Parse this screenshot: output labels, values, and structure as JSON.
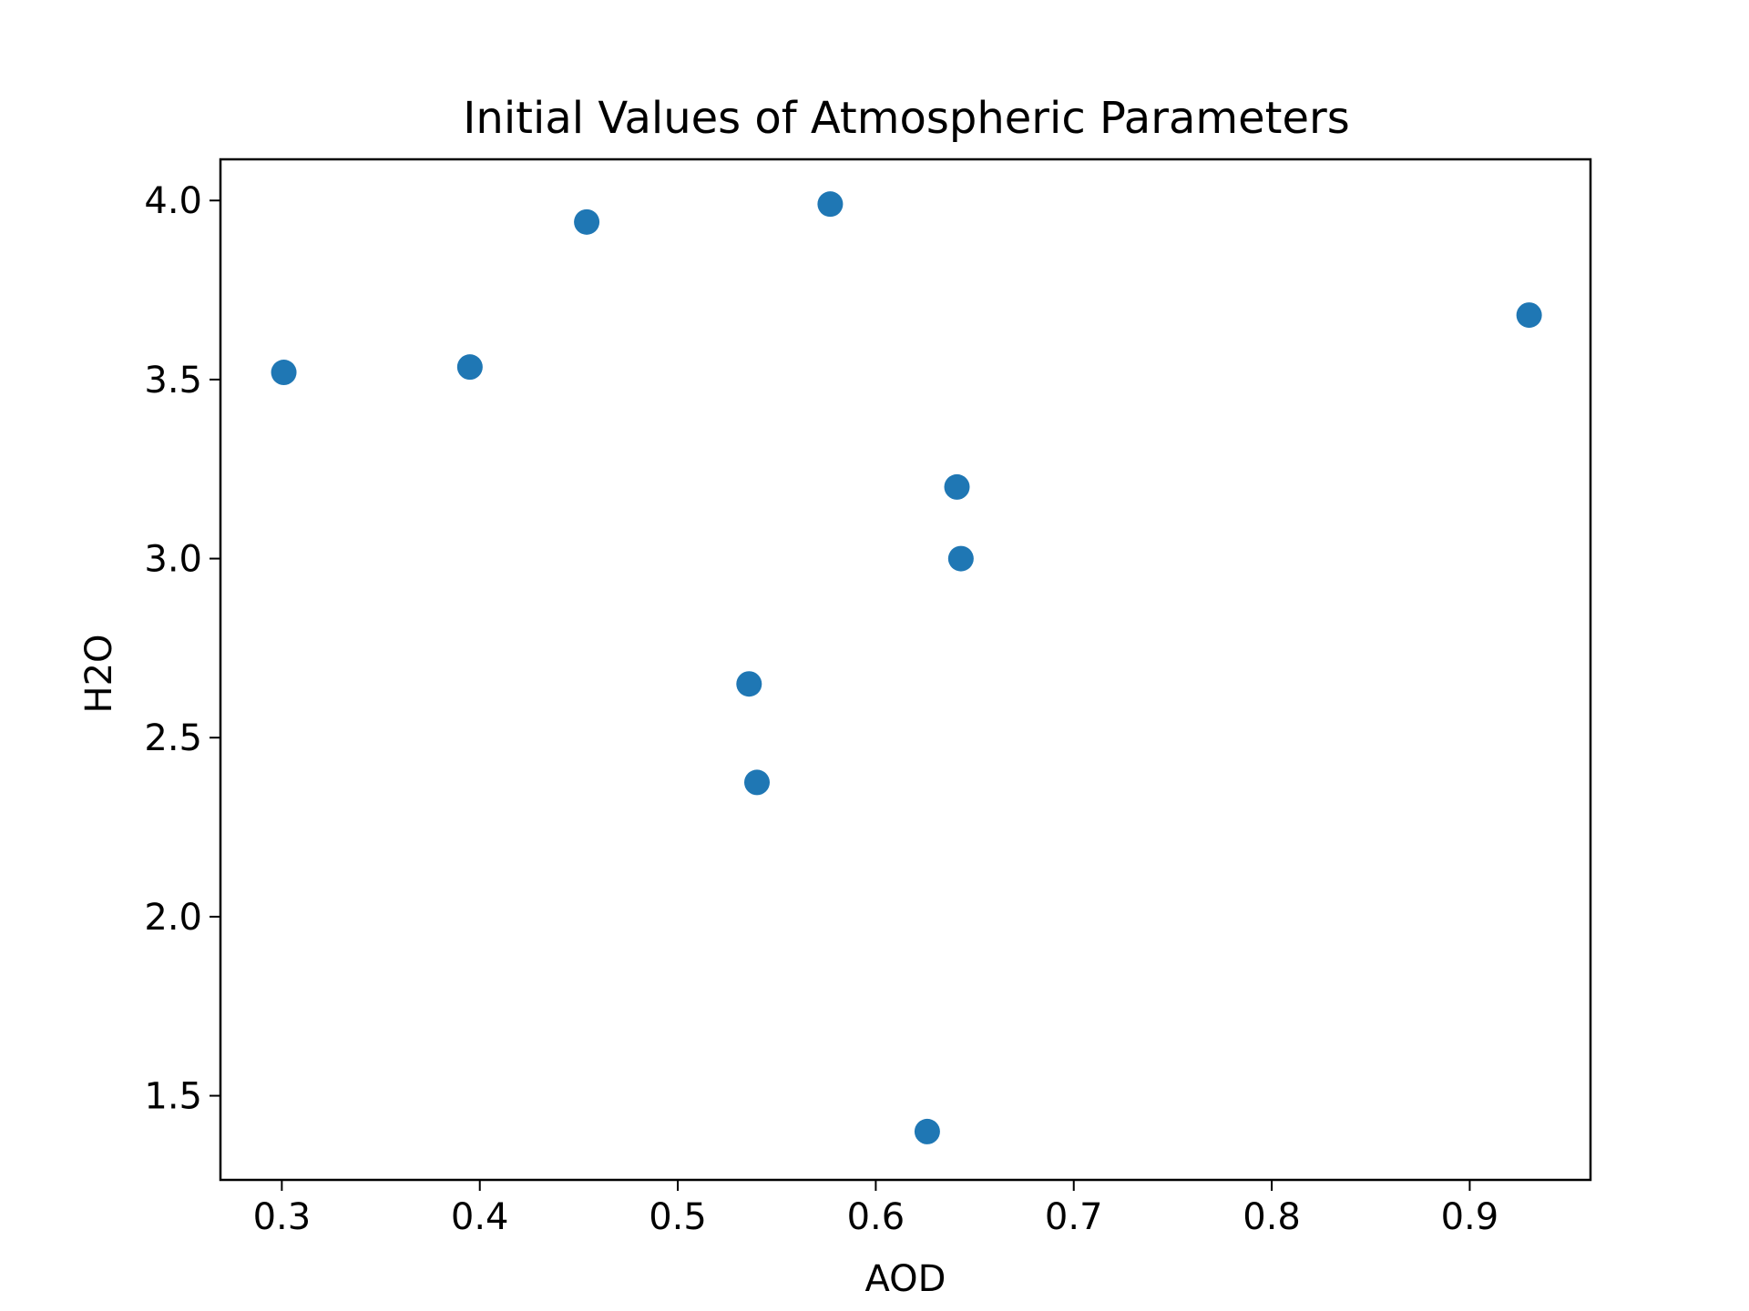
{
  "chart_data": {
    "type": "scatter",
    "title": "Initial Values of Atmospheric Parameters",
    "xlabel": "AOD",
    "ylabel": "H2O",
    "xlim": [
      0.269,
      0.961
    ],
    "ylim": [
      1.265,
      4.115
    ],
    "x_ticks": [
      0.3,
      0.4,
      0.5,
      0.6,
      0.7,
      0.8,
      0.9
    ],
    "x_tick_labels": [
      "0.3",
      "0.4",
      "0.5",
      "0.6",
      "0.7",
      "0.8",
      "0.9"
    ],
    "y_ticks": [
      1.5,
      2.0,
      2.5,
      3.0,
      3.5,
      4.0
    ],
    "y_tick_labels": [
      "1.5",
      "2.0",
      "2.5",
      "3.0",
      "3.5",
      "4.0"
    ],
    "grid": false,
    "marker_color": "#1f77b4",
    "points": [
      {
        "x": 0.301,
        "y": 3.52
      },
      {
        "x": 0.395,
        "y": 3.535
      },
      {
        "x": 0.454,
        "y": 3.94
      },
      {
        "x": 0.577,
        "y": 3.99
      },
      {
        "x": 0.536,
        "y": 2.65
      },
      {
        "x": 0.54,
        "y": 2.375
      },
      {
        "x": 0.626,
        "y": 1.4
      },
      {
        "x": 0.641,
        "y": 3.2
      },
      {
        "x": 0.643,
        "y": 3.0
      },
      {
        "x": 0.93,
        "y": 3.68
      }
    ]
  }
}
